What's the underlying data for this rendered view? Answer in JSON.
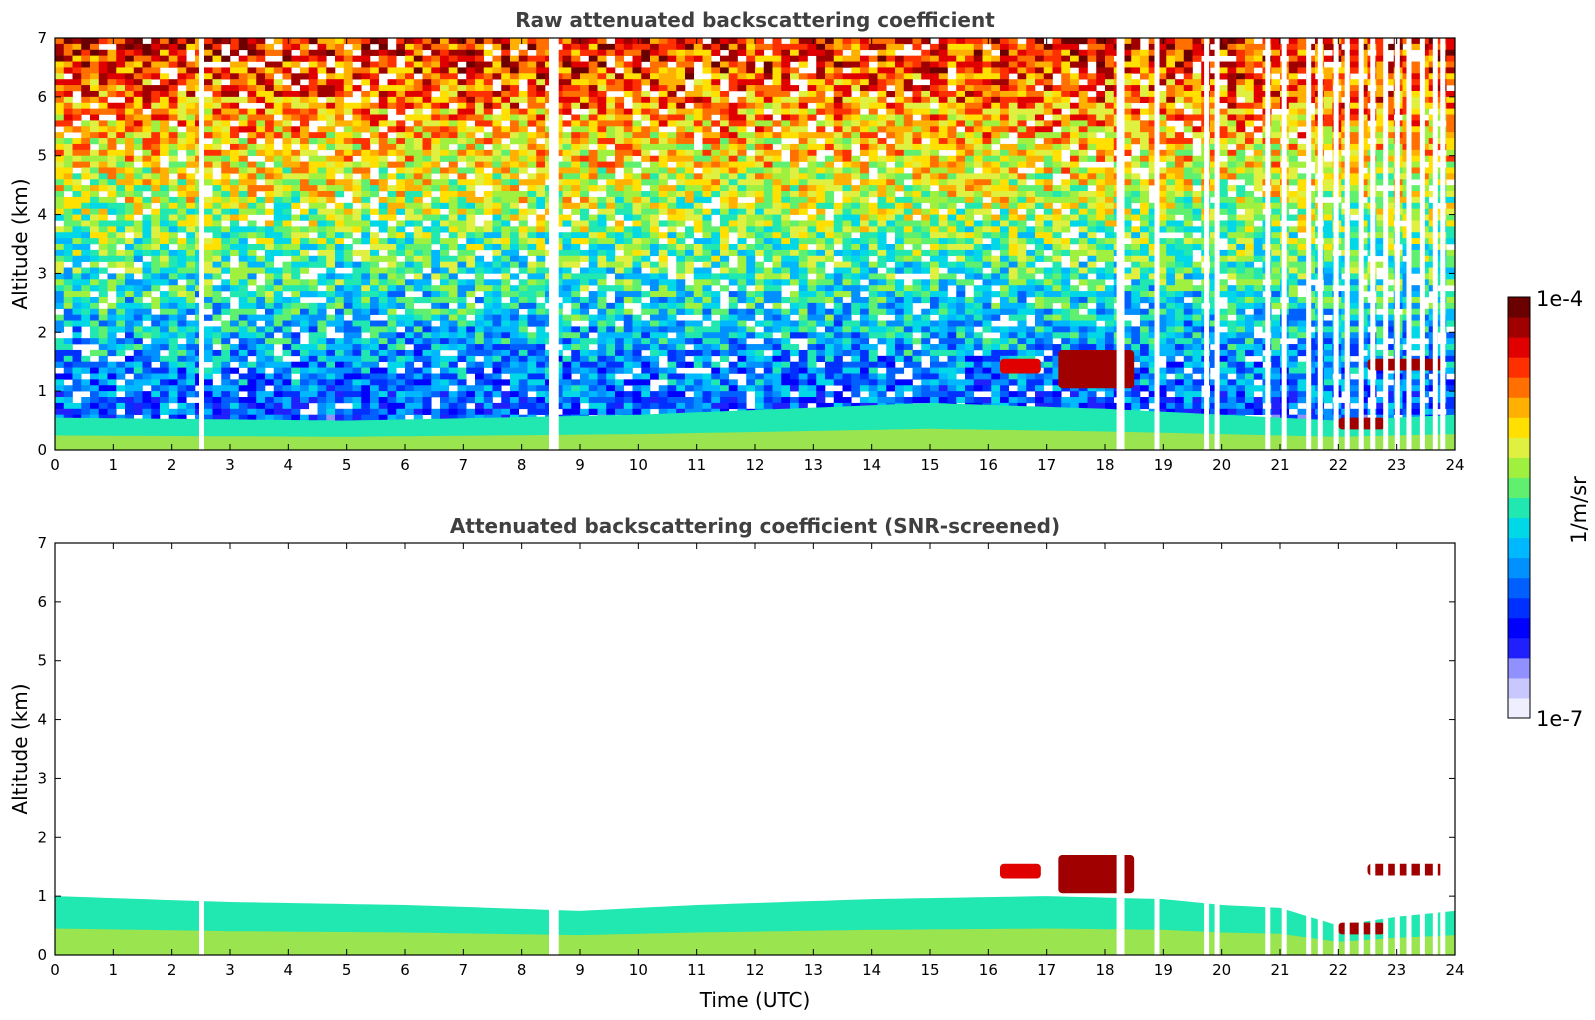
{
  "colorbar": {
    "top_label": "1e-4",
    "bottom_label": "1e-7",
    "unit_label": "1/m/sr",
    "colors": [
      "#eeeeff",
      "#c8c8ff",
      "#9090ff",
      "#2020ff",
      "#0000ff",
      "#0030ff",
      "#0060ff",
      "#0090ff",
      "#00b8ff",
      "#00d8e8",
      "#20e8b0",
      "#60f070",
      "#a0f040",
      "#e0f040",
      "#ffe000",
      "#ffb000",
      "#ff7000",
      "#ff3000",
      "#e00000",
      "#a00000",
      "#6a0000"
    ]
  },
  "chart_data": [
    {
      "type": "heatmap",
      "title": "Raw attenuated backscattering coefficient",
      "xlabel": "",
      "ylabel": "Altitude (km)",
      "xlim": [
        0,
        24
      ],
      "ylim": [
        0,
        7
      ],
      "x_ticks": [
        "0",
        "1",
        "2",
        "3",
        "4",
        "5",
        "6",
        "7",
        "8",
        "9",
        "10",
        "11",
        "12",
        "13",
        "14",
        "15",
        "16",
        "17",
        "18",
        "19",
        "20",
        "21",
        "22",
        "23",
        "24"
      ],
      "y_ticks": [
        "0",
        "1",
        "2",
        "3",
        "4",
        "5",
        "6",
        "7"
      ],
      "color_scale": {
        "min": 1e-07,
        "max": 0.0001,
        "scale": "log",
        "unit": "1/m/sr"
      },
      "missing_data_gaps_hours": [
        2.52,
        8.52,
        8.6,
        18.25,
        18.3,
        18.9,
        19.75,
        19.93,
        20.8,
        21.08,
        21.5,
        21.7,
        21.97,
        22.16,
        22.4,
        22.6,
        22.82,
        23.02,
        23.22,
        23.45,
        23.67,
        23.8
      ],
      "features": [
        {
          "name": "boundary layer",
          "x_start": 0,
          "x_end": 24,
          "top_km_at": [
            [
              0,
              0.55
            ],
            [
              5,
              0.5
            ],
            [
              10,
              0.6
            ],
            [
              15,
              0.8
            ],
            [
              18,
              0.7
            ],
            [
              22,
              0.5
            ],
            [
              24,
              0.6
            ]
          ],
          "level": 3e-06
        },
        {
          "name": "cloud",
          "x_start": 16.2,
          "x_end": 16.9,
          "y_km": [
            1.3,
            1.55
          ],
          "level": 5e-05
        },
        {
          "name": "cloud",
          "x_start": 17.2,
          "x_end": 18.5,
          "y_km": [
            1.05,
            1.7
          ],
          "level": 7e-05
        },
        {
          "name": "cloud",
          "x_start": 22.0,
          "x_end": 22.8,
          "y_km": [
            0.35,
            0.55
          ],
          "level": 6e-05
        },
        {
          "name": "cloud",
          "x_start": 22.5,
          "x_end": 23.8,
          "y_km": [
            1.35,
            1.55
          ],
          "level": 6e-05
        }
      ]
    },
    {
      "type": "heatmap",
      "title": "Attenuated backscattering coefficient (SNR-screened)",
      "xlabel": "Time (UTC)",
      "ylabel": "Altitude (km)",
      "xlim": [
        0,
        24
      ],
      "ylim": [
        0,
        7
      ],
      "x_ticks": [
        "0",
        "1",
        "2",
        "3",
        "4",
        "5",
        "6",
        "7",
        "8",
        "9",
        "10",
        "11",
        "12",
        "13",
        "14",
        "15",
        "16",
        "17",
        "18",
        "19",
        "20",
        "21",
        "22",
        "23",
        "24"
      ],
      "y_ticks": [
        "0",
        "1",
        "2",
        "3",
        "4",
        "5",
        "6",
        "7"
      ],
      "color_scale": {
        "min": 1e-07,
        "max": 0.0001,
        "scale": "log",
        "unit": "1/m/sr"
      },
      "missing_data_gaps_hours": [
        2.52,
        8.52,
        8.6,
        18.25,
        18.3,
        18.9,
        19.75,
        19.93,
        20.8,
        21.08,
        21.5,
        21.7,
        21.97,
        22.16,
        22.4,
        22.6,
        22.82,
        23.02,
        23.22,
        23.45,
        23.67,
        23.8
      ],
      "features": [
        {
          "name": "boundary layer",
          "x_start": 0,
          "x_end": 24,
          "top_km_at": [
            [
              0,
              1.0
            ],
            [
              3,
              0.9
            ],
            [
              6,
              0.85
            ],
            [
              9,
              0.75
            ],
            [
              11,
              0.85
            ],
            [
              14,
              0.95
            ],
            [
              17,
              1.0
            ],
            [
              19,
              0.95
            ],
            [
              20,
              0.85
            ],
            [
              21,
              0.8
            ],
            [
              22,
              0.5
            ],
            [
              23,
              0.65
            ],
            [
              24,
              0.75
            ]
          ],
          "level": 3e-06
        },
        {
          "name": "cloud",
          "x_start": 16.2,
          "x_end": 16.9,
          "y_km": [
            1.3,
            1.55
          ],
          "level": 5e-05
        },
        {
          "name": "cloud",
          "x_start": 17.2,
          "x_end": 18.5,
          "y_km": [
            1.05,
            1.7
          ],
          "level": 7e-05
        },
        {
          "name": "cloud",
          "x_start": 22.0,
          "x_end": 22.8,
          "y_km": [
            0.35,
            0.55
          ],
          "level": 6e-05
        },
        {
          "name": "cloud",
          "x_start": 22.5,
          "x_end": 23.8,
          "y_km": [
            1.35,
            1.55
          ],
          "level": 6e-05
        }
      ]
    }
  ]
}
